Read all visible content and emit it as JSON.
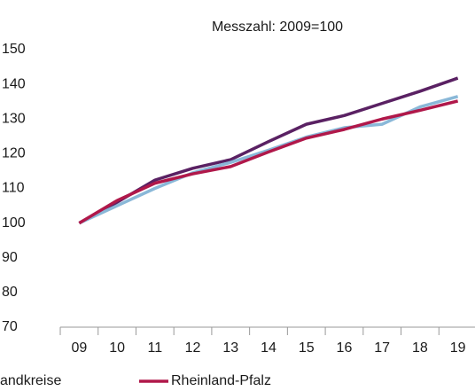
{
  "chart_data": {
    "type": "line",
    "title": "Messzahl: 2009=100",
    "categories": [
      "09",
      "10",
      "11",
      "12",
      "13",
      "14",
      "15",
      "16",
      "17",
      "18",
      "19"
    ],
    "series": [
      {
        "color": "#5a2163",
        "values": [
          100,
          106,
          112.4,
          115.8,
          118.3,
          123.5,
          128.5,
          131,
          134.5,
          138,
          141.8
        ]
      },
      {
        "name": "andkreise",
        "color": "#8ab8d8",
        "values": [
          100,
          105,
          110,
          114.5,
          117.5,
          121,
          124.8,
          127.5,
          128.5,
          133.5,
          136.5
        ]
      },
      {
        "name": "Rheinland-Pfalz",
        "color": "#b0184a",
        "values": [
          100,
          106.5,
          111.5,
          114.2,
          116.3,
          120.5,
          124.5,
          127,
          130,
          132.5,
          135.2
        ]
      }
    ],
    "ylim": [
      70,
      150
    ],
    "yticks": [
      70,
      80,
      90,
      100,
      110,
      120,
      130,
      140,
      150
    ],
    "grid": false,
    "legend": "bottom"
  }
}
